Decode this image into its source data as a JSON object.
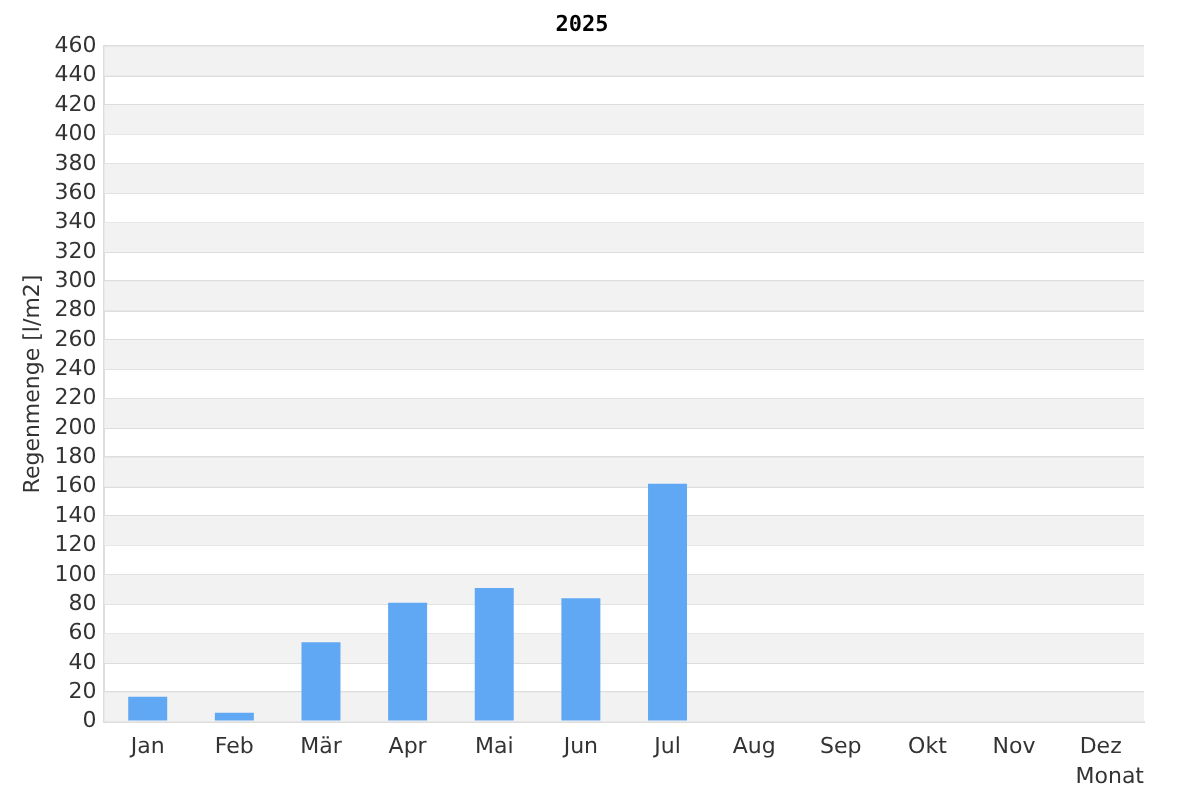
{
  "chart_data": {
    "type": "bar",
    "title": "2025",
    "xlabel": "Monat",
    "ylabel": "Regenmenge [l/m2]",
    "categories": [
      "Jan",
      "Feb",
      "Mär",
      "Apr",
      "Mai",
      "Jun",
      "Jul",
      "Aug",
      "Sep",
      "Okt",
      "Nov",
      "Dez"
    ],
    "values": [
      17,
      6,
      54,
      81,
      91,
      84,
      162,
      null,
      null,
      null,
      null,
      null
    ],
    "color": "#60a8f4",
    "ylim": [
      0,
      460
    ],
    "yticks": [
      0,
      20,
      40,
      60,
      80,
      100,
      120,
      140,
      160,
      180,
      200,
      220,
      240,
      260,
      280,
      300,
      320,
      340,
      360,
      380,
      400,
      420,
      440,
      460
    ],
    "grid": "y",
    "legend": false
  }
}
